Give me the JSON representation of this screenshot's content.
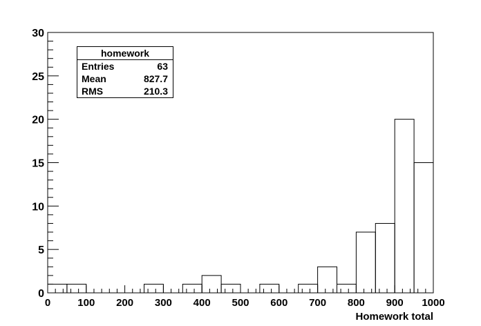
{
  "chart_data": {
    "type": "bar",
    "style": "step-histogram",
    "xlabel": "Homework total",
    "ylabel": "",
    "xlim": [
      0,
      1000
    ],
    "ylim": [
      0,
      30
    ],
    "xticks": [
      0,
      100,
      200,
      300,
      400,
      500,
      600,
      700,
      800,
      900,
      1000
    ],
    "yticks": [
      0,
      5,
      10,
      15,
      20,
      25,
      30
    ],
    "bin_width": 50,
    "bin_edges": [
      0,
      50,
      100,
      150,
      200,
      250,
      300,
      350,
      400,
      450,
      500,
      550,
      600,
      650,
      700,
      750,
      800,
      850,
      900,
      950,
      1000
    ],
    "values": [
      1,
      1,
      0,
      0,
      0,
      1,
      0,
      1,
      2,
      1,
      0,
      1,
      0,
      1,
      3,
      1,
      7,
      8,
      20,
      15
    ],
    "grid": false,
    "line_color": "#000000",
    "stats": {
      "title": "homework",
      "rows": [
        {
          "label": "Entries",
          "value": "63"
        },
        {
          "label": "Mean",
          "value": "827.7"
        },
        {
          "label": "RMS",
          "value": "210.3"
        }
      ]
    }
  }
}
